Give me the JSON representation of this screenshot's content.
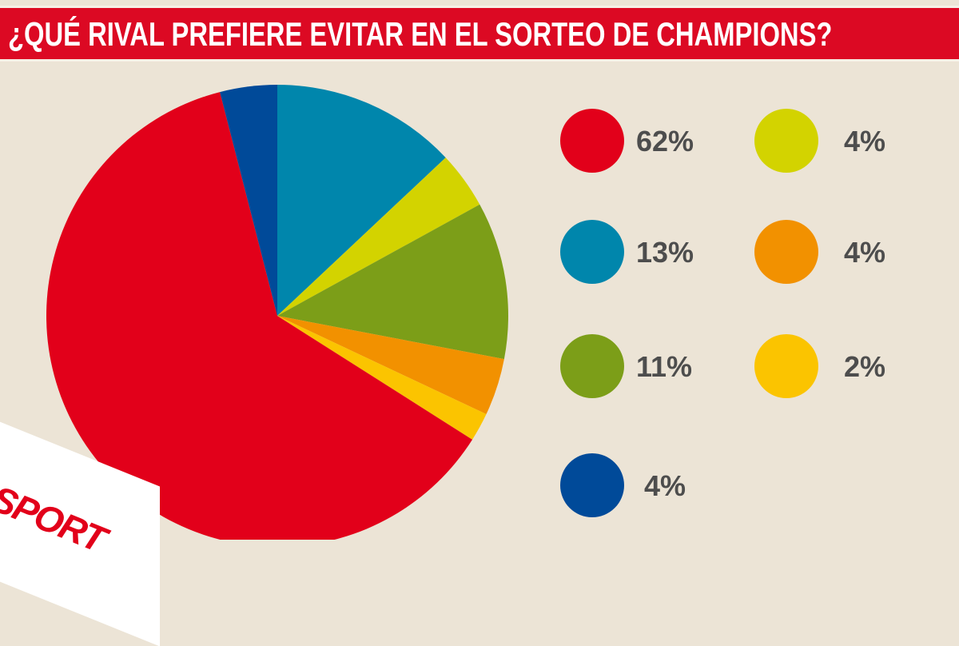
{
  "chart_data": {
    "type": "pie",
    "title": "¿QUÉ RIVAL PREFIERE EVITAR EN EL SORTEO DE CHAMPIONS?",
    "slices": [
      {
        "value": 13,
        "label": "13%",
        "color": "#0086ac"
      },
      {
        "value": 4,
        "label": "4%",
        "color": "#d3d300"
      },
      {
        "value": 11,
        "label": "11%",
        "color": "#7c9e18"
      },
      {
        "value": 4,
        "label": "4%",
        "color": "#f29100"
      },
      {
        "value": 2,
        "label": "2%",
        "color": "#fbc400"
      },
      {
        "value": 62,
        "label": "62%",
        "color": "#e2001a"
      },
      {
        "value": 4,
        "label": "4%",
        "color": "#004a99"
      }
    ],
    "legend_order": [
      5,
      1,
      0,
      3,
      2,
      4,
      6
    ],
    "start": "top, clockwise"
  },
  "brand": {
    "logo_text": "SPORT",
    "color": "#e2001a"
  }
}
